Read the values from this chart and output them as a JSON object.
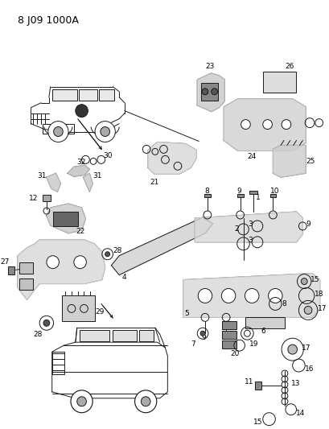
{
  "title": "8 J09 1000A",
  "bg_color": "#ffffff",
  "line_color": "#1a1a1a",
  "fig_width": 4.09,
  "fig_height": 5.33,
  "dpi": 100,
  "header_fontsize": 9,
  "label_fontsize": 6.5
}
